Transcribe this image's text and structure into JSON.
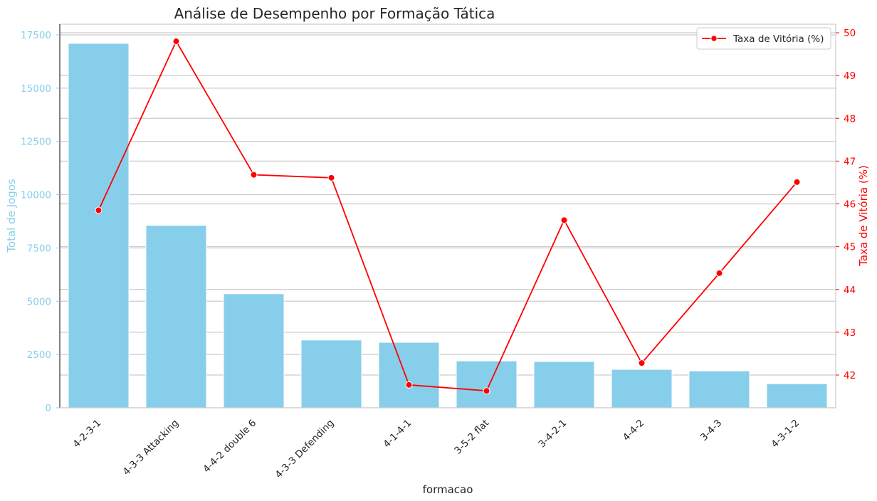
{
  "chart_data": {
    "type": "bar+line",
    "title": "Análise de Desempenho por Formação Tática",
    "xlabel": "formacao",
    "categories": [
      "4-2-3-1",
      "4-3-3 Attacking",
      "4-4-2 double 6",
      "4-3-3 Defending",
      "4-1-4-1",
      "3-5-2 flat",
      "3-4-2-1",
      "4-4-2",
      "3-4-3",
      "4-3-1-2"
    ],
    "bar_series": {
      "ylabel": "Total de Jogos",
      "values": [
        17100,
        8560,
        5350,
        3180,
        3070,
        2200,
        2170,
        1800,
        1730,
        1130
      ],
      "ylim": [
        0,
        17500
      ],
      "ticks": [
        0,
        2500,
        5000,
        7500,
        10000,
        12500,
        15000,
        17500
      ],
      "tick_labels": [
        "0",
        "2500",
        "5000",
        "7500",
        "10000",
        "12500",
        "15000",
        "17500"
      ],
      "color": "#87ceeb"
    },
    "line_series": {
      "name": "Taxa de Vitória (%)",
      "ylabel": "Taxa de Vitória (%)",
      "values": [
        45.85,
        49.8,
        46.68,
        46.61,
        41.77,
        41.63,
        45.62,
        42.28,
        44.38,
        46.51
      ],
      "ylim": [
        42,
        50
      ],
      "ticks": [
        42,
        43,
        44,
        45,
        46,
        47,
        48,
        49,
        50
      ],
      "tick_labels": [
        "42",
        "43",
        "44",
        "45",
        "46",
        "47",
        "48",
        "49",
        "50"
      ],
      "color": "#ff0000"
    },
    "grid": true,
    "legend": {
      "placement": "top-right",
      "entries": [
        "Taxa de Vitória (%)"
      ]
    }
  }
}
